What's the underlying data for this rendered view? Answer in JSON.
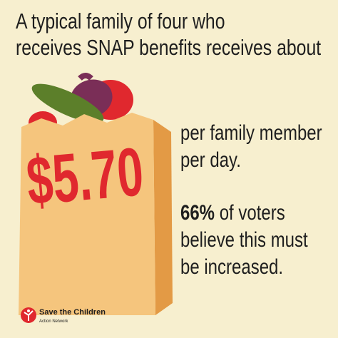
{
  "headline": {
    "line1": "A typical family of four who",
    "line2": "receives SNAP benefits receives about"
  },
  "amount": "$5.70",
  "per": {
    "line1": "per family member",
    "line2": "per day."
  },
  "poll": {
    "figure": "66%",
    "line1_rest": " of voters",
    "line2": "believe this must",
    "line3": "be increased."
  },
  "logo": {
    "name": "Save the Children",
    "sub": "Action Network"
  }
}
